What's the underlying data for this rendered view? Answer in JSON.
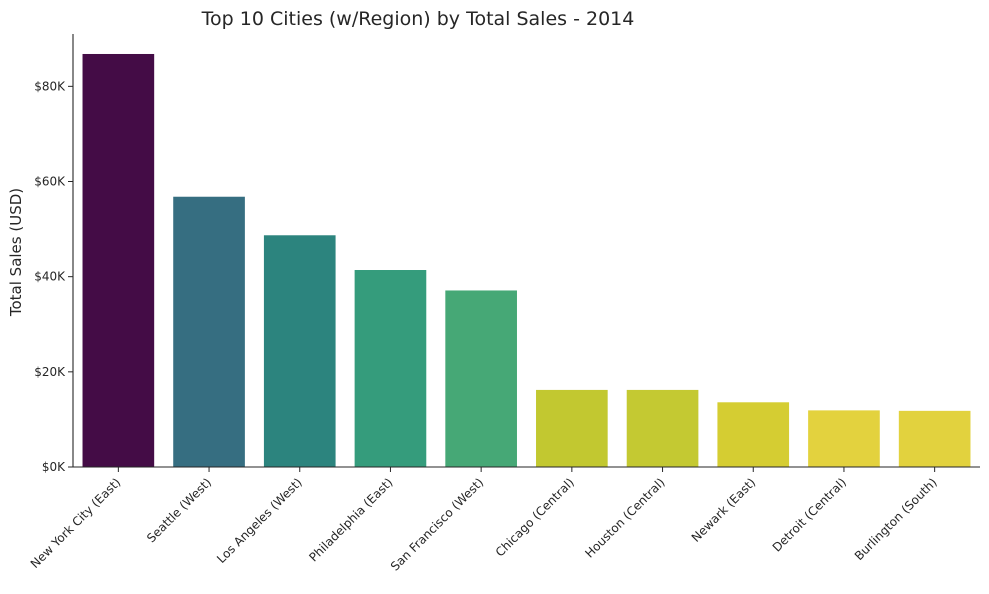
{
  "chart_data": {
    "type": "bar",
    "title": "Top 10 Cities (w/Region) by Total Sales - 2014",
    "xlabel": "",
    "ylabel": "Total Sales (USD)",
    "categories": [
      "New York City (East)",
      "Seattle (West)",
      "Los Angeles (West)",
      "Philadelphia (East)",
      "San Francisco (West)",
      "Chicago (Central)",
      "Houston (Central)",
      "Newark (East)",
      "Detroit (Central)",
      "Burlington (South)"
    ],
    "values": [
      86800,
      56800,
      48700,
      41400,
      37100,
      16200,
      16200,
      13600,
      11900,
      11800
    ],
    "colors": [
      "#440c46",
      "#366e81",
      "#2c847e",
      "#359c7c",
      "#46a876",
      "#c2c830",
      "#c4c932",
      "#d5cd32",
      "#e3d23e",
      "#e2d23e"
    ],
    "ylim": [
      0,
      91000
    ],
    "yticks": [
      0,
      20000,
      40000,
      60000,
      80000
    ],
    "ytick_labels": [
      "$0K",
      "$20K",
      "$40K",
      "$60K",
      "$80K"
    ],
    "grid": false,
    "legend": "none"
  }
}
